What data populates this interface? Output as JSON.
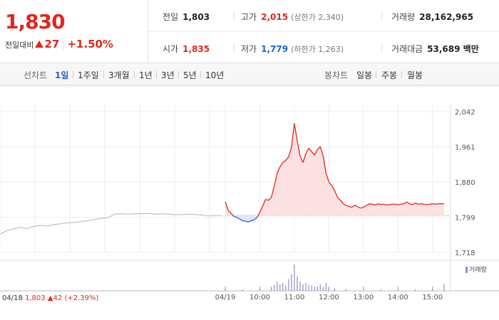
{
  "summary": {
    "price": "1,830",
    "change_label": "전일대비",
    "change_amount": "27",
    "change_percent": "+1.50%"
  },
  "stats": {
    "prev_close": {
      "label": "전일",
      "value": "1,803"
    },
    "high": {
      "label": "고가",
      "value": "2,015",
      "sub": "(상한가 2,340)"
    },
    "volume": {
      "label": "거래량",
      "value": "28,162,965"
    },
    "open": {
      "label": "시가",
      "value": "1,835"
    },
    "low": {
      "label": "저가",
      "value": "1,779",
      "sub": "(하한가 1,263)"
    },
    "turnover": {
      "label": "거래대금",
      "value": "53,689 백만"
    }
  },
  "tabs": {
    "line_label": "선차트",
    "line_tabs": [
      "1일",
      "1주일",
      "3개월",
      "1년",
      "3년",
      "5년",
      "10년"
    ],
    "candle_label": "봉차트",
    "candle_tabs": [
      "일봉",
      "주봉",
      "월봉"
    ]
  },
  "volume_legend": "거래량",
  "prev_info": {
    "date": "04/18",
    "price": "1,803",
    "change": "42",
    "percent": "(+2.39%)"
  },
  "colors": {
    "up": "#e0271d",
    "down": "#1a63d6",
    "prev_day_line": "#c0c0c0",
    "volume_bar": "#9b88c4"
  },
  "chart_data": {
    "type": "line",
    "y_ticks": [
      "2,042",
      "1,961",
      "1,880",
      "1,799",
      "1,718"
    ],
    "ylim": [
      1718,
      2042
    ],
    "reference_price": 1803,
    "x_ticks": [
      "04/19",
      "10:00",
      "11:00",
      "12:00",
      "13:00",
      "14:00",
      "15:00"
    ],
    "previous_day": {
      "date": "04/18",
      "points": [
        [
          0,
          1760
        ],
        [
          3,
          1768
        ],
        [
          6,
          1772
        ],
        [
          9,
          1776
        ],
        [
          12,
          1773
        ],
        [
          15,
          1778
        ],
        [
          18,
          1780
        ],
        [
          21,
          1779
        ],
        [
          24,
          1782
        ],
        [
          27,
          1784
        ],
        [
          30,
          1786
        ],
        [
          33,
          1787
        ],
        [
          36,
          1789
        ],
        [
          39,
          1791
        ],
        [
          42,
          1794
        ],
        [
          45,
          1796
        ],
        [
          48,
          1798
        ],
        [
          51,
          1806
        ],
        [
          54,
          1807
        ],
        [
          57,
          1806
        ],
        [
          60,
          1807
        ],
        [
          63,
          1807
        ],
        [
          66,
          1808
        ],
        [
          69,
          1806
        ],
        [
          72,
          1807
        ],
        [
          75,
          1806
        ],
        [
          78,
          1805
        ],
        [
          81,
          1805
        ],
        [
          84,
          1806
        ],
        [
          87,
          1805
        ],
        [
          90,
          1804
        ],
        [
          93,
          1802
        ],
        [
          96,
          1803
        ],
        [
          99,
          1803
        ]
      ]
    },
    "series": [
      {
        "date": "04/19",
        "points": [
          [
            "09:00",
            1835
          ],
          [
            "09:05",
            1815
          ],
          [
            "09:10",
            1808
          ],
          [
            "09:15",
            1801
          ],
          [
            "09:20",
            1799
          ],
          [
            "09:25",
            1795
          ],
          [
            "09:30",
            1791
          ],
          [
            "09:35",
            1790
          ],
          [
            "09:40",
            1788
          ],
          [
            "09:45",
            1791
          ],
          [
            "09:50",
            1793
          ],
          [
            "09:55",
            1798
          ],
          [
            "10:00",
            1810
          ],
          [
            "10:05",
            1825
          ],
          [
            "10:10",
            1840
          ],
          [
            "10:15",
            1838
          ],
          [
            "10:20",
            1845
          ],
          [
            "10:25",
            1870
          ],
          [
            "10:30",
            1900
          ],
          [
            "10:35",
            1915
          ],
          [
            "10:40",
            1925
          ],
          [
            "10:45",
            1930
          ],
          [
            "10:50",
            1938
          ],
          [
            "10:55",
            1960
          ],
          [
            "11:00",
            2015
          ],
          [
            "11:05",
            1975
          ],
          [
            "11:10",
            1940
          ],
          [
            "11:15",
            1925
          ],
          [
            "11:20",
            1945
          ],
          [
            "11:25",
            1958
          ],
          [
            "11:30",
            1950
          ],
          [
            "11:35",
            1942
          ],
          [
            "11:40",
            1955
          ],
          [
            "11:45",
            1962
          ],
          [
            "11:50",
            1940
          ],
          [
            "11:55",
            1900
          ],
          [
            "12:00",
            1880
          ],
          [
            "12:05",
            1872
          ],
          [
            "12:10",
            1860
          ],
          [
            "12:15",
            1845
          ],
          [
            "12:20",
            1838
          ],
          [
            "12:25",
            1830
          ],
          [
            "12:30",
            1826
          ],
          [
            "12:35",
            1824
          ],
          [
            "12:40",
            1822
          ],
          [
            "12:45",
            1827
          ],
          [
            "12:50",
            1823
          ],
          [
            "12:55",
            1820
          ],
          [
            "13:00",
            1822
          ],
          [
            "13:05",
            1826
          ],
          [
            "13:10",
            1830
          ],
          [
            "13:15",
            1829
          ],
          [
            "13:20",
            1827
          ],
          [
            "13:25",
            1830
          ],
          [
            "13:30",
            1828
          ],
          [
            "13:35",
            1829
          ],
          [
            "13:40",
            1827
          ],
          [
            "13:45",
            1828
          ],
          [
            "13:50",
            1829
          ],
          [
            "13:55",
            1829
          ],
          [
            "14:00",
            1828
          ],
          [
            "14:05",
            1829
          ],
          [
            "14:10",
            1830
          ],
          [
            "14:15",
            1834
          ],
          [
            "14:20",
            1830
          ],
          [
            "14:25",
            1828
          ],
          [
            "14:30",
            1832
          ],
          [
            "14:35",
            1829
          ],
          [
            "14:40",
            1830
          ],
          [
            "14:45",
            1829
          ],
          [
            "14:50",
            1828
          ],
          [
            "14:55",
            1829
          ],
          [
            "15:00",
            1830
          ],
          [
            "15:05",
            1829
          ],
          [
            "15:10",
            1830
          ],
          [
            "15:15",
            1830
          ],
          [
            "15:20",
            1830
          ]
        ]
      }
    ],
    "volume": {
      "label": "거래량",
      "bars": [
        [
          "09:00",
          6
        ],
        [
          "09:30",
          2
        ],
        [
          "10:00",
          4
        ],
        [
          "10:20",
          6
        ],
        [
          "10:25",
          9
        ],
        [
          "10:30",
          14
        ],
        [
          "10:35",
          10
        ],
        [
          "10:40",
          12
        ],
        [
          "10:45",
          8
        ],
        [
          "10:50",
          18
        ],
        [
          "10:55",
          25
        ],
        [
          "11:00",
          40
        ],
        [
          "11:05",
          22
        ],
        [
          "11:10",
          14
        ],
        [
          "11:15",
          10
        ],
        [
          "11:20",
          12
        ],
        [
          "11:25",
          9
        ],
        [
          "11:30",
          8
        ],
        [
          "11:35",
          6
        ],
        [
          "11:40",
          7
        ],
        [
          "11:45",
          10
        ],
        [
          "11:50",
          6
        ],
        [
          "11:55",
          12
        ],
        [
          "12:00",
          5
        ],
        [
          "12:10",
          4
        ],
        [
          "12:30",
          3
        ],
        [
          "13:00",
          2
        ],
        [
          "13:30",
          2
        ],
        [
          "14:00",
          2
        ],
        [
          "14:30",
          2
        ],
        [
          "15:00",
          3
        ],
        [
          "15:20",
          10
        ]
      ]
    }
  }
}
